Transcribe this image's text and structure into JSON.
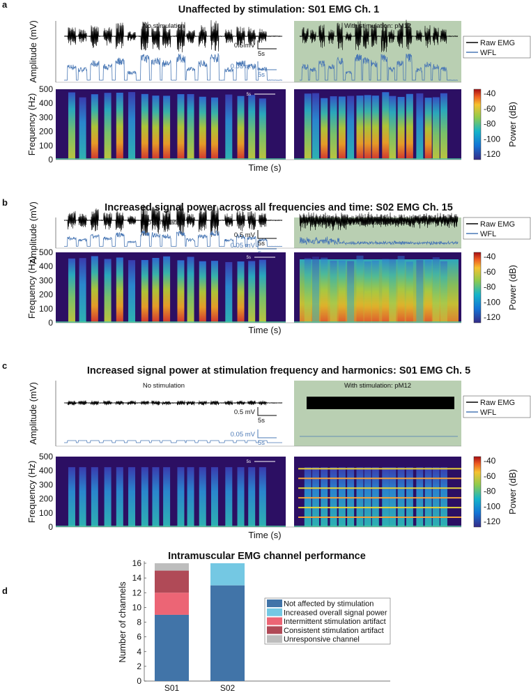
{
  "panels": [
    {
      "letter": "a",
      "title": "Unaffected by stimulation: S01 EMG Ch. 1",
      "no_stim": "No stimulation",
      "with_stim": "With stimulation: pM12",
      "type": "clean"
    },
    {
      "letter": "b",
      "title": "Increased signal power across all frequencies and time: S02 EMG Ch. 15",
      "no_stim": "No stimulation",
      "with_stim": "With stimulation: pM6",
      "type": "broadband"
    },
    {
      "letter": "c",
      "title": "Increased signal power at stimulation frequency and harmonics: S01 EMG Ch. 5",
      "no_stim": "No stimulation",
      "with_stim": "With stimulation: pM12",
      "type": "harmonic"
    }
  ],
  "common": {
    "amplitude_label": "Amplitude (mV)",
    "frequency_label": "Frequency (Hz)",
    "time_label": "Time (s)",
    "power_label": "Power (dB)",
    "raw_scale": "0.5 mV",
    "wfl_scale": "0.05 mV",
    "time_scale": "5s",
    "legend": [
      "Raw EMG",
      "WFL"
    ],
    "freq_ticks": [
      "500",
      "400",
      "300",
      "200",
      "100",
      "0"
    ],
    "power_ticks": [
      "-40",
      "-60",
      "-80",
      "-100",
      "-120"
    ]
  },
  "colors": {
    "raw": "#000000",
    "wfl": "#4a78b5",
    "stim_bg": "#b9cfb2",
    "spec_bg": "#2c0f63"
  },
  "chart_data": {
    "panel_letter": "d",
    "type": "bar",
    "stacked": true,
    "title": "Intramuscular EMG channel performance",
    "xlabel": "",
    "ylabel": "Number of channels",
    "categories": [
      "S01",
      "S02"
    ],
    "ylim": [
      0,
      16
    ],
    "yticks": [
      "0",
      "2",
      "4",
      "6",
      "8",
      "10",
      "12",
      "14",
      "16"
    ],
    "legend_position": "center-right",
    "series": [
      {
        "name": "Not affected by stimulation",
        "values": [
          9,
          13
        ],
        "color": "#4174a8"
      },
      {
        "name": "Increased overall signal power",
        "values": [
          0,
          3
        ],
        "color": "#74c8e3"
      },
      {
        "name": "Intermittent stimulation artifact",
        "values": [
          3,
          0
        ],
        "color": "#ec6575"
      },
      {
        "name": "Consistent stimulation artifact",
        "values": [
          3,
          0
        ],
        "color": "#b04a57"
      },
      {
        "name": "Unresponsive channel",
        "values": [
          1,
          0
        ],
        "color": "#bdbdbd"
      }
    ]
  }
}
